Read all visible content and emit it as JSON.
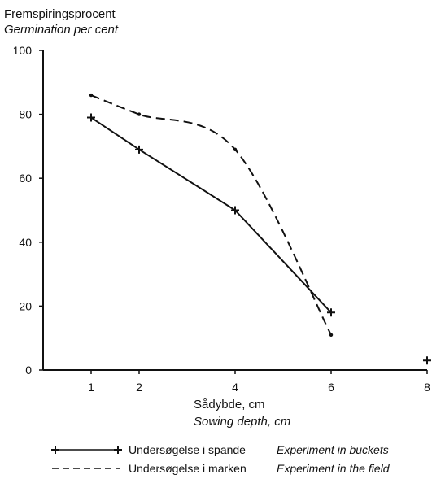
{
  "chart_data": {
    "type": "line",
    "ylabel": "Fremspiringsprocent",
    "ylabel_en": "Germination per cent",
    "xlabel": "Sådybde, cm",
    "xlabel_en": "Sowing depth, cm",
    "xlim": [
      0,
      8
    ],
    "ylim": [
      0,
      100
    ],
    "x_ticks": [
      1,
      2,
      4,
      6,
      8
    ],
    "x_tick_labels": [
      "1",
      "2",
      "4",
      "6",
      "8"
    ],
    "y_ticks": [
      0,
      20,
      40,
      60,
      80,
      100
    ],
    "y_tick_labels": [
      "0",
      "20",
      "40",
      "60",
      "80",
      "100"
    ],
    "grid": false,
    "legend_position": "bottom",
    "series": [
      {
        "name": "Undersøgelse i spande",
        "name_en": "Experiment in buckets",
        "style": "solid",
        "marker": "plus",
        "color": "#111111",
        "x": [
          1,
          2,
          4,
          6
        ],
        "y": [
          79,
          69,
          50,
          18
        ]
      },
      {
        "name": "Undersøgelse i marken",
        "name_en": "Experiment in the field",
        "style": "dashed",
        "marker": "dot",
        "color": "#111111",
        "x": [
          1,
          2,
          4,
          6
        ],
        "y": [
          86,
          80,
          69,
          11
        ]
      }
    ],
    "extra_points": [
      {
        "x": 8,
        "y": 3,
        "marker": "plus"
      }
    ]
  }
}
